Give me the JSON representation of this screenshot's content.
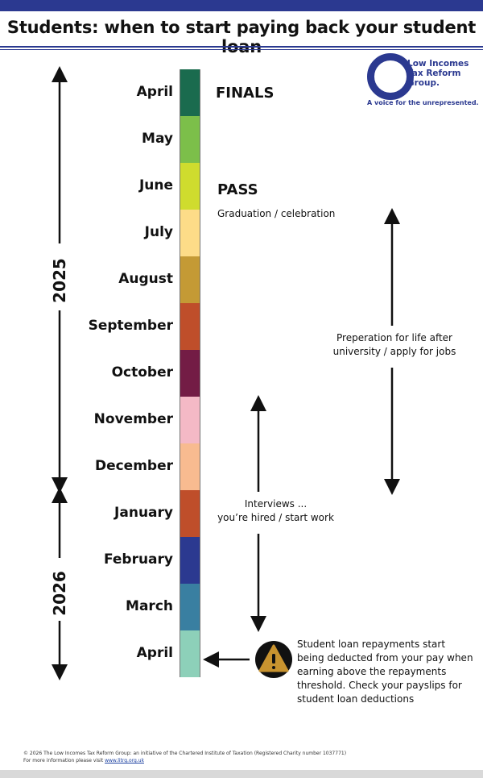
{
  "title": "Students: when to start paying back your student loan",
  "logo": {
    "line1": "Low Incomes",
    "line2": "Tax Reform",
    "line3": "Group.",
    "tagline": "A voice for the unrepresented.",
    "brand_color": "#2b3990"
  },
  "years": {
    "first": "2025",
    "second": "2026"
  },
  "months": [
    {
      "label": "April",
      "color": "#1a6b4e"
    },
    {
      "label": "May",
      "color": "#7cbf4a"
    },
    {
      "label": "June",
      "color": "#cfdc2e"
    },
    {
      "label": "July",
      "color": "#fddc88"
    },
    {
      "label": "August",
      "color": "#c49a35"
    },
    {
      "label": "September",
      "color": "#bf4e2a"
    },
    {
      "label": "October",
      "color": "#731c45"
    },
    {
      "label": "November",
      "color": "#f4b9c6"
    },
    {
      "label": "December",
      "color": "#f8bb90"
    },
    {
      "label": "January",
      "color": "#bf4e2a"
    },
    {
      "label": "February",
      "color": "#2b3990"
    },
    {
      "label": "March",
      "color": "#397fa1"
    },
    {
      "label": "April",
      "color": "#8dd0b9"
    }
  ],
  "events": {
    "finals": "FINALS",
    "pass": "PASS",
    "graduation": "Graduation / celebration",
    "preparation_line1": "Preperation for life after",
    "preparation_line2": "university / apply for jobs",
    "interviews_line1": "Interviews ...",
    "interviews_line2": "you’re hired / start work",
    "repay_line1": "Student loan repayments start",
    "repay_line2": "being deducted from your pay when",
    "repay_line3": "earning above the repayments",
    "repay_line4": "threshold. Check your payslips for",
    "repay_line5": "student loan deductions"
  },
  "footer": {
    "line1": "© 2026 The Low Incomes Tax Reform Group: an initiative of the Chartered Institute of Taxation (Registered Charity number 1037771)",
    "line2_prefix": "For more information please visit ",
    "link": "www.litrg.org.uk"
  },
  "icons": {
    "warning": "warning-icon",
    "arrow": "double-arrow-icon"
  }
}
